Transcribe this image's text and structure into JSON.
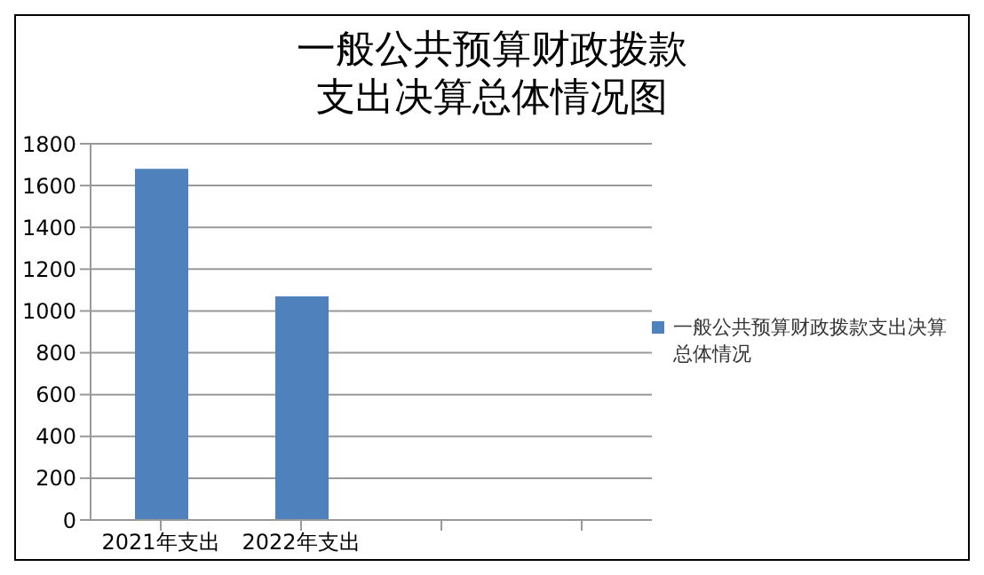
{
  "chart_data": {
    "type": "bar",
    "title": "一般公共预算财政拨款支出决算总体情况图",
    "categories": [
      "2021年支出",
      "2022年支出",
      null,
      null
    ],
    "series": [
      {
        "name": "一般公共预算财政拨款支出决算总体情况",
        "color": "#4f81bd",
        "values": [
          1680,
          1070,
          null,
          null
        ]
      }
    ],
    "ylim": [
      0,
      1800
    ],
    "yticks": [
      0,
      200,
      400,
      600,
      800,
      1000,
      1200,
      1400,
      1600,
      1800
    ],
    "grid": "y",
    "legend": "right"
  }
}
